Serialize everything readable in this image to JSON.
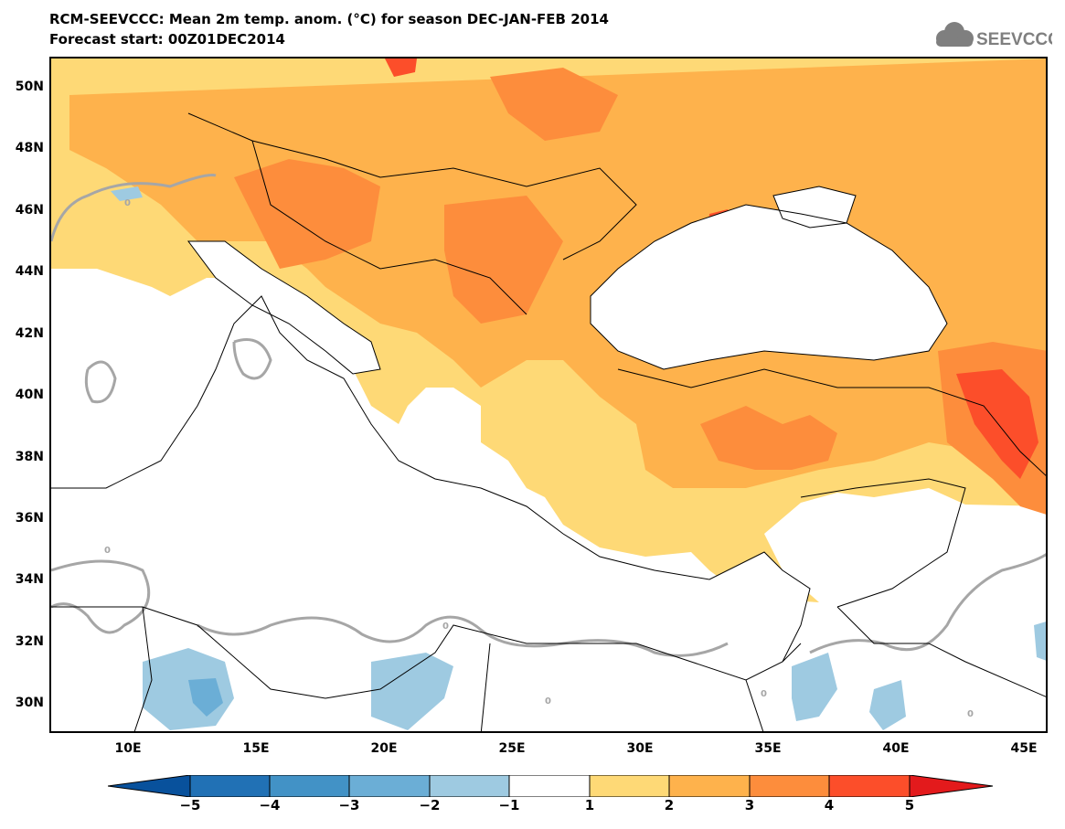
{
  "header": {
    "title": "RCM-SEEVCCC: Mean 2m temp. anom. (°C) for season DEC-JAN-FEB 2014",
    "subtitle": "Forecast start: 00Z01DEC2014",
    "logo_text": "SEEVCCC"
  },
  "map": {
    "lat_labels": [
      "50N",
      "48N",
      "46N",
      "44N",
      "42N",
      "40N",
      "38N",
      "36N",
      "34N",
      "32N",
      "30N"
    ],
    "lon_labels": [
      "10E",
      "15E",
      "20E",
      "25E",
      "30E",
      "35E",
      "40E",
      "45E"
    ],
    "contour_label": "0",
    "contour_color": "#a6a6a6"
  },
  "colorbar": {
    "labels": [
      "−5",
      "−4",
      "−3",
      "−2",
      "−1",
      "1",
      "2",
      "3",
      "4",
      "5"
    ],
    "colors": [
      "#08519c",
      "#2171b5",
      "#4292c6",
      "#6baed6",
      "#9ecae1",
      "#ffffff",
      "#fed976",
      "#feb24c",
      "#fd8d3c",
      "#fc4e2a",
      "#e31a1c"
    ]
  }
}
